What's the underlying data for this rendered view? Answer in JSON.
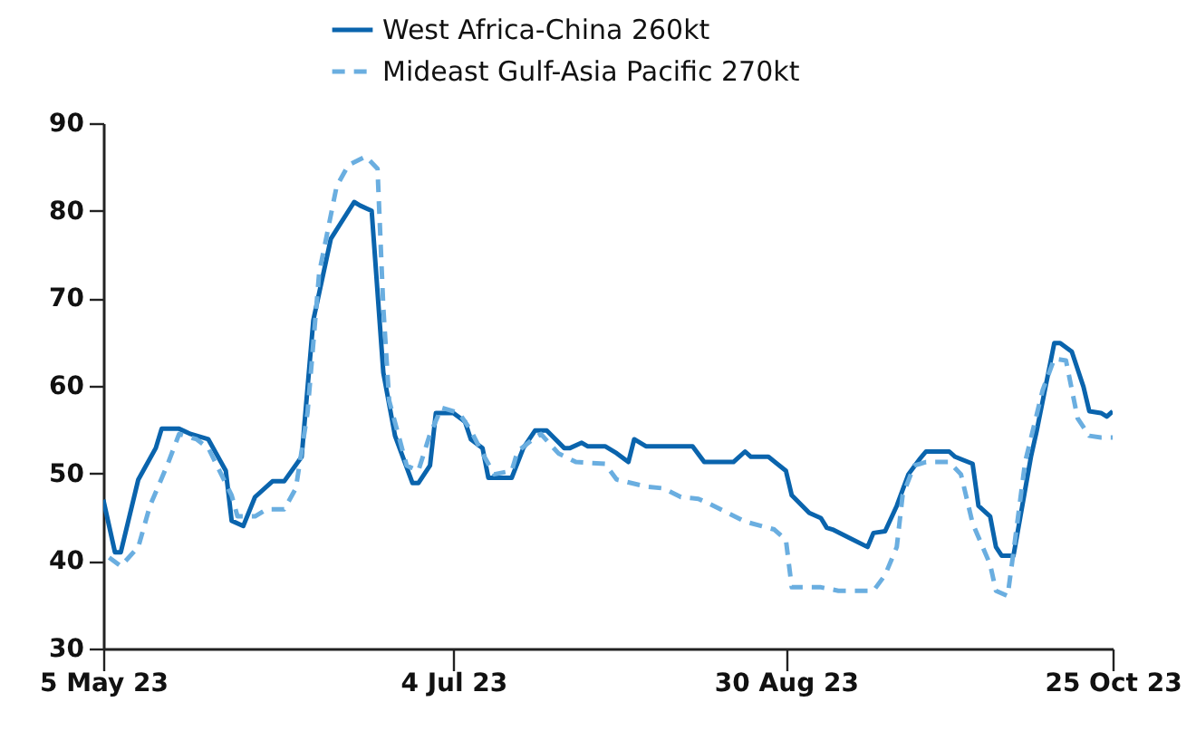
{
  "chart_data": {
    "type": "line",
    "legend": "top",
    "marker": "none",
    "xlim": [
      "2023-05-05",
      "2023-10-25"
    ],
    "xticks": [
      {
        "value": "2023-05-05",
        "label": "5 May 23"
      },
      {
        "value": "2023-07-04",
        "label": "4 Jul 23"
      },
      {
        "value": "2023-08-30",
        "label": "30 Aug 23"
      },
      {
        "value": "2023-10-25",
        "label": "25 Oct 23"
      }
    ],
    "ylim": [
      30,
      90
    ],
    "yticks": [
      30,
      40,
      50,
      60,
      70,
      80,
      90
    ],
    "series": [
      {
        "name": "West Africa-China 260kt",
        "color": "#0a64ad",
        "line_style": "solid",
        "x": [
          "2023-05-05",
          "2023-05-07",
          "2023-05-08",
          "2023-05-11",
          "2023-05-14",
          "2023-05-15",
          "2023-05-18",
          "2023-05-20",
          "2023-05-23",
          "2023-05-26",
          "2023-05-27",
          "2023-05-29",
          "2023-05-31",
          "2023-06-03",
          "2023-06-05",
          "2023-06-08",
          "2023-06-10",
          "2023-06-13",
          "2023-06-17",
          "2023-06-18",
          "2023-06-20",
          "2023-06-22",
          "2023-06-24",
          "2023-06-27",
          "2023-06-28",
          "2023-06-30",
          "2023-07-01",
          "2023-07-04",
          "2023-07-06",
          "2023-07-07",
          "2023-07-09",
          "2023-07-10",
          "2023-07-14",
          "2023-07-16",
          "2023-07-18",
          "2023-07-20",
          "2023-07-23",
          "2023-07-24",
          "2023-07-26",
          "2023-07-27",
          "2023-07-30",
          "2023-08-01",
          "2023-08-03",
          "2023-08-04",
          "2023-08-06",
          "2023-08-14",
          "2023-08-16",
          "2023-08-21",
          "2023-08-23",
          "2023-08-24",
          "2023-08-27",
          "2023-08-30",
          "2023-08-31",
          "2023-09-03",
          "2023-09-05",
          "2023-09-06",
          "2023-09-07",
          "2023-09-10",
          "2023-09-13",
          "2023-09-14",
          "2023-09-16",
          "2023-09-18",
          "2023-09-20",
          "2023-09-22",
          "2023-09-23",
          "2023-09-27",
          "2023-09-28",
          "2023-10-01",
          "2023-10-02",
          "2023-10-04",
          "2023-10-05",
          "2023-10-06",
          "2023-10-08",
          "2023-10-11",
          "2023-10-12",
          "2023-10-15",
          "2023-10-16",
          "2023-10-18",
          "2023-10-20",
          "2023-10-21",
          "2023-10-23",
          "2023-10-24",
          "2023-10-25"
        ],
        "values": [
          47,
          41,
          41,
          49.3,
          52.9,
          55.1,
          55.1,
          54.5,
          53.9,
          50.3,
          44.6,
          44,
          47.3,
          49.1,
          49.1,
          51.9,
          67.5,
          76.8,
          81,
          80.6,
          80,
          61.5,
          54.3,
          48.9,
          48.9,
          50.9,
          56.9,
          56.9,
          55.9,
          53.9,
          52.9,
          49.5,
          49.5,
          52.9,
          54.9,
          54.9,
          52.9,
          52.9,
          53.5,
          53.1,
          53.1,
          52.3,
          51.3,
          53.9,
          53.1,
          53.1,
          51.3,
          51.3,
          52.5,
          51.9,
          51.9,
          50.3,
          47.5,
          45.5,
          44.9,
          43.8,
          43.6,
          42.6,
          41.6,
          43.2,
          43.4,
          46.3,
          49.9,
          51.7,
          52.5,
          52.5,
          51.9,
          51.1,
          46.3,
          45.1,
          41.6,
          40.6,
          40.6,
          51.9,
          54.9,
          64.9,
          64.9,
          63.9,
          59.9,
          57.1,
          56.9,
          56.5,
          57.1
        ]
      },
      {
        "name": "Mideast Gulf-Asia Pacific 270kt",
        "color": "#6aaee0",
        "line_style": "dashed",
        "x": [
          "2023-05-06",
          "2023-05-08",
          "2023-05-11",
          "2023-05-13",
          "2023-05-16",
          "2023-05-18",
          "2023-05-21",
          "2023-05-23",
          "2023-05-27",
          "2023-05-28",
          "2023-05-31",
          "2023-06-02",
          "2023-06-05",
          "2023-06-07",
          "2023-06-09",
          "2023-06-11",
          "2023-06-14",
          "2023-06-16",
          "2023-06-19",
          "2023-06-21",
          "2023-06-22",
          "2023-06-23",
          "2023-06-26",
          "2023-06-28",
          "2023-06-30",
          "2023-07-02",
          "2023-07-05",
          "2023-07-07",
          "2023-07-09",
          "2023-07-11",
          "2023-07-14",
          "2023-07-15",
          "2023-07-18",
          "2023-07-19",
          "2023-07-22",
          "2023-07-25",
          "2023-07-30",
          "2023-08-01",
          "2023-08-06",
          "2023-08-09",
          "2023-08-12",
          "2023-08-15",
          "2023-08-17",
          "2023-08-20",
          "2023-08-23",
          "2023-08-28",
          "2023-08-30",
          "2023-08-31",
          "2023-09-03",
          "2023-09-05",
          "2023-09-08",
          "2023-09-14",
          "2023-09-16",
          "2023-09-18",
          "2023-09-19",
          "2023-09-21",
          "2023-09-23",
          "2023-09-27",
          "2023-09-29",
          "2023-10-01",
          "2023-10-04",
          "2023-10-05",
          "2023-10-07",
          "2023-10-08",
          "2023-10-10",
          "2023-10-13",
          "2023-10-15",
          "2023-10-17",
          "2023-10-19",
          "2023-10-21",
          "2023-10-23",
          "2023-10-25"
        ],
        "values": [
          40.4,
          39.4,
          41.6,
          46.3,
          51,
          54.5,
          53.9,
          52.9,
          47.5,
          45.1,
          45.1,
          45.9,
          45.9,
          48.3,
          56.9,
          72.9,
          82.8,
          85.2,
          86.2,
          84.8,
          68.9,
          58.3,
          50.9,
          50.3,
          54.5,
          57.5,
          56.9,
          54.9,
          52.3,
          49.9,
          50.3,
          52.5,
          54.1,
          54.5,
          52.3,
          51.3,
          51.1,
          49.3,
          48.5,
          48.3,
          47.3,
          47.1,
          46.5,
          45.5,
          44.5,
          43.6,
          42.4,
          37,
          37,
          37,
          36.6,
          36.6,
          38.4,
          41.6,
          47.5,
          50.9,
          51.3,
          51.3,
          49.9,
          44.3,
          39.6,
          36.6,
          36,
          41,
          51.3,
          59.5,
          63.1,
          62.9,
          56.3,
          54.3,
          54.1,
          54.1
        ]
      }
    ]
  }
}
